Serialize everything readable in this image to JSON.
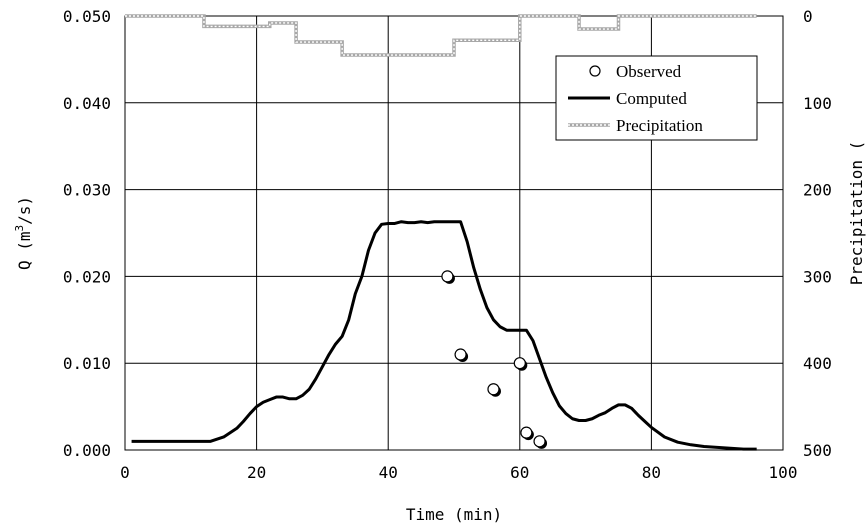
{
  "chart_data": {
    "type": "line",
    "xlabel": "Time (min)",
    "ylabel": "Q (m3/s)",
    "y2label": "Precipitation (",
    "xlim": [
      0,
      100
    ],
    "ylim": [
      0,
      0.05
    ],
    "y2lim": [
      0,
      500
    ],
    "y2_inverted": true,
    "grid": true,
    "legend_position": "top-right",
    "x_ticks": [
      "0",
      "20",
      "40",
      "60",
      "80",
      "100"
    ],
    "y_ticks": [
      "0.000",
      "0.010",
      "0.020",
      "0.030",
      "0.040",
      "0.050"
    ],
    "y2_ticks": [
      "0",
      "100",
      "200",
      "300",
      "400",
      "500"
    ],
    "series": [
      {
        "name": "Observed",
        "style": "open-circle",
        "color": "#000000",
        "x": [
          49,
          51,
          56,
          60,
          61,
          63
        ],
        "y": [
          0.02,
          0.011,
          0.007,
          0.01,
          0.002,
          0.001
        ]
      },
      {
        "name": "Computed",
        "style": "line",
        "color": "#000000",
        "x": [
          1,
          5,
          10,
          13,
          15,
          17,
          18,
          19,
          20,
          21,
          22,
          23,
          24,
          25,
          26,
          27,
          28,
          29,
          30,
          31,
          32,
          33,
          34,
          35,
          36,
          37,
          38,
          39,
          40,
          41,
          42,
          43,
          44,
          45,
          46,
          47,
          48,
          49,
          50,
          51,
          52,
          53,
          54,
          55,
          56,
          57,
          58,
          59,
          60,
          61,
          62,
          63,
          64,
          65,
          66,
          67,
          68,
          69,
          70,
          71,
          72,
          73,
          74,
          75,
          76,
          77,
          78,
          79,
          80,
          82,
          84,
          86,
          88,
          90,
          92,
          94,
          96
        ],
        "y": [
          0.001,
          0.001,
          0.001,
          0.001,
          0.0015,
          0.0025,
          0.0033,
          0.0042,
          0.005,
          0.0055,
          0.0058,
          0.0061,
          0.0061,
          0.0059,
          0.0059,
          0.0063,
          0.007,
          0.0082,
          0.0096,
          0.011,
          0.0122,
          0.0131,
          0.015,
          0.018,
          0.02,
          0.023,
          0.025,
          0.026,
          0.0261,
          0.0261,
          0.0263,
          0.0262,
          0.0262,
          0.0263,
          0.0262,
          0.0263,
          0.0263,
          0.0263,
          0.0263,
          0.0263,
          0.024,
          0.021,
          0.0185,
          0.0164,
          0.015,
          0.0142,
          0.0138,
          0.0138,
          0.0138,
          0.0138,
          0.0126,
          0.0105,
          0.0084,
          0.0066,
          0.0051,
          0.0042,
          0.0036,
          0.0034,
          0.0034,
          0.0036,
          0.004,
          0.0043,
          0.0048,
          0.0052,
          0.0052,
          0.0048,
          0.004,
          0.0033,
          0.0026,
          0.0015,
          0.0009,
          0.0006,
          0.0004,
          0.0003,
          0.0002,
          0.0001,
          0.0001
        ]
      },
      {
        "name": "Precipitation",
        "style": "dotted-step",
        "color": "#9a9a9a",
        "axis": "right",
        "x": [
          0,
          12,
          12,
          22,
          22,
          26,
          26,
          33,
          33,
          50,
          50,
          60,
          60,
          69,
          69,
          75,
          75,
          96
        ],
        "y": [
          0,
          0,
          12,
          12,
          8,
          8,
          30,
          30,
          45,
          45,
          28,
          28,
          0,
          0,
          15,
          15,
          0,
          0
        ]
      }
    ]
  }
}
